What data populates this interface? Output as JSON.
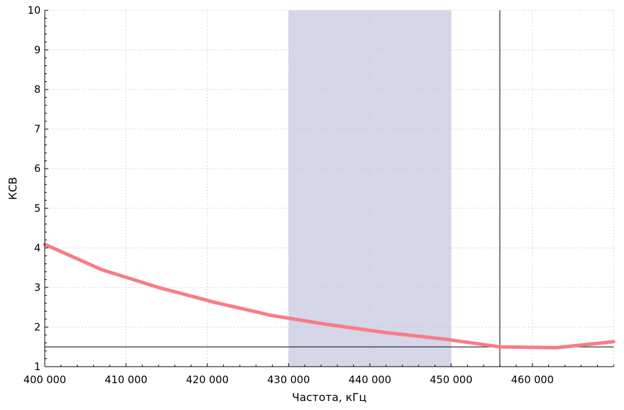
{
  "chart_data": {
    "type": "line",
    "title": "",
    "xlabel": "Частота, кГц",
    "ylabel": "КСВ",
    "xlim": [
      400000,
      470000
    ],
    "ylim": [
      1,
      10
    ],
    "grid": true,
    "x_ticks": [
      400000,
      410000,
      420000,
      430000,
      440000,
      450000,
      460000
    ],
    "x_tick_labels": [
      "400 000",
      "410 000",
      "420 000",
      "430 000",
      "440 000",
      "450 000",
      "460 000"
    ],
    "y_ticks": [
      1,
      2,
      3,
      4,
      5,
      6,
      7,
      8,
      9,
      10
    ],
    "y_tick_labels": [
      "1",
      "2",
      "3",
      "4",
      "5",
      "6",
      "7",
      "8",
      "9",
      "10"
    ],
    "series": [
      {
        "color": "#f87c86",
        "x": [
          400000,
          407000,
          414000,
          421000,
          428000,
          435000,
          442000,
          449000,
          456000,
          463000,
          470000
        ],
        "y": [
          4.09,
          3.45,
          3.0,
          2.62,
          2.29,
          2.06,
          1.86,
          1.7,
          1.5,
          1.48,
          1.63
        ]
      }
    ],
    "highlight_band": {
      "x_from": 430000,
      "x_to": 450000,
      "color": "#d5d6e8"
    },
    "vertical_marker": {
      "x": 456000,
      "color": "#000000"
    },
    "horizontal_marker": {
      "y": 1.5,
      "color": "#000000"
    }
  }
}
